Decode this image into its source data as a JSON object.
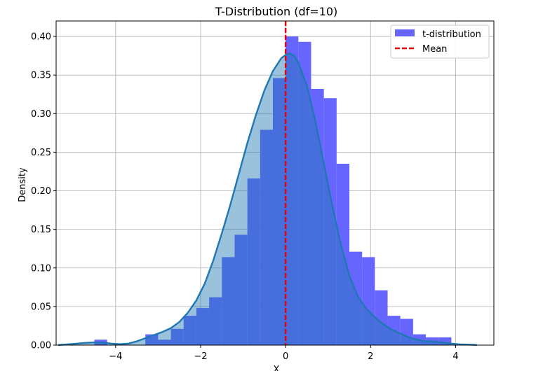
{
  "chart_data": {
    "type": "bar",
    "title": "T-Distribution (df=10)",
    "xlabel": "X",
    "ylabel": "Density",
    "xlim": [
      -5.4,
      4.9
    ],
    "ylim": [
      0,
      0.42
    ],
    "xticks": [
      -4,
      -2,
      0,
      2,
      4
    ],
    "xtick_labels": [
      "−4",
      "−2",
      "0",
      "2",
      "4"
    ],
    "yticks": [
      0.0,
      0.05,
      0.1,
      0.15,
      0.2,
      0.25,
      0.3,
      0.35,
      0.4
    ],
    "ytick_labels": [
      "0.00",
      "0.05",
      "0.10",
      "0.15",
      "0.20",
      "0.25",
      "0.30",
      "0.35",
      "0.40"
    ],
    "grid": true,
    "legend_position": "top-right",
    "histogram": {
      "name": "t-distribution",
      "color": "#6666ff",
      "bin_edges": [
        -4.5,
        -4.2,
        -3.9,
        -3.6,
        -3.3,
        -3.0,
        -2.7,
        -2.4,
        -2.1,
        -1.8,
        -1.5,
        -1.2,
        -0.9,
        -0.6,
        -0.3,
        0.0,
        0.3,
        0.6,
        0.9,
        1.2,
        1.5,
        1.8,
        2.1,
        2.4,
        2.7,
        3.0,
        3.3,
        3.6,
        3.9
      ],
      "densities": [
        0.007,
        0.0,
        0.0,
        0.0,
        0.014,
        0.007,
        0.021,
        0.038,
        0.048,
        0.062,
        0.114,
        0.143,
        0.216,
        0.279,
        0.346,
        0.4,
        0.393,
        0.332,
        0.32,
        0.235,
        0.121,
        0.114,
        0.071,
        0.038,
        0.034,
        0.014,
        0.01,
        0.01
      ]
    },
    "kde": {
      "color": "#1f77b4",
      "fill_color": "#1f77b4",
      "x": [
        -5.35,
        -5.0,
        -4.7,
        -4.5,
        -4.3,
        -4.1,
        -3.9,
        -3.7,
        -3.5,
        -3.3,
        -3.1,
        -2.9,
        -2.7,
        -2.5,
        -2.3,
        -2.1,
        -1.9,
        -1.7,
        -1.5,
        -1.3,
        -1.1,
        -0.9,
        -0.7,
        -0.5,
        -0.3,
        -0.1,
        0.0,
        0.1,
        0.2,
        0.3,
        0.5,
        0.7,
        0.9,
        1.1,
        1.3,
        1.5,
        1.7,
        1.9,
        2.1,
        2.3,
        2.5,
        2.7,
        2.9,
        3.1,
        3.3,
        3.5,
        3.7,
        3.9,
        4.1,
        4.3,
        4.5
      ],
      "y": [
        0.0,
        0.0015,
        0.003,
        0.0035,
        0.0033,
        0.002,
        0.0012,
        0.002,
        0.005,
        0.009,
        0.013,
        0.017,
        0.022,
        0.03,
        0.042,
        0.058,
        0.08,
        0.11,
        0.145,
        0.182,
        0.222,
        0.262,
        0.298,
        0.33,
        0.355,
        0.372,
        0.376,
        0.378,
        0.375,
        0.366,
        0.336,
        0.29,
        0.235,
        0.18,
        0.13,
        0.09,
        0.063,
        0.047,
        0.036,
        0.027,
        0.02,
        0.015,
        0.01,
        0.007,
        0.005,
        0.0045,
        0.0035,
        0.002,
        0.001,
        0.0006,
        0.0002
      ]
    },
    "mean_line": {
      "name": "Mean",
      "x": 0.0,
      "color": "#e8000b"
    },
    "legend": [
      {
        "label": "t-distribution",
        "kind": "patch",
        "color": "#6666ff"
      },
      {
        "label": "Mean",
        "kind": "dashed-line",
        "color": "#e8000b"
      }
    ]
  }
}
